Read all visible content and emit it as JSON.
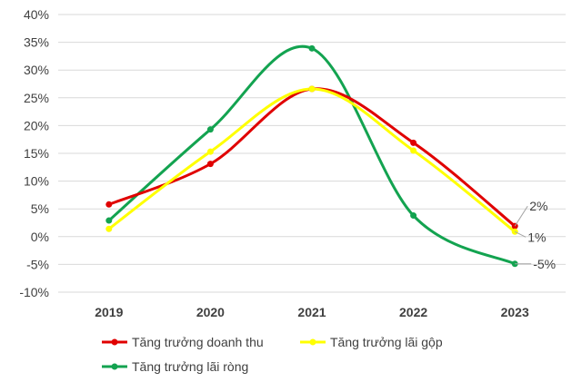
{
  "chart_data": {
    "type": "line",
    "smooth": true,
    "categories": [
      "2019",
      "2020",
      "2021",
      "2022",
      "2023"
    ],
    "y_ticks": [
      "40%",
      "35%",
      "30%",
      "25%",
      "20%",
      "15%",
      "10%",
      "5%",
      "0%",
      "-5%",
      "-10%"
    ],
    "ylim": [
      -10,
      40
    ],
    "y_unit": "%",
    "grid": true,
    "legend_position": "bottom",
    "series": [
      {
        "name": "Tăng trưởng doanh thu",
        "color": "#e00000",
        "values": [
          5.8,
          13.1,
          26.6,
          16.9,
          1.9
        ]
      },
      {
        "name": "Tăng trưởng lãi gộp",
        "color": "#ffff00",
        "values": [
          1.4,
          15.3,
          26.6,
          15.5,
          0.9
        ]
      },
      {
        "name": "Tăng trưởng lãi ròng",
        "color": "#13a350",
        "values": [
          2.9,
          19.3,
          33.9,
          3.8,
          -4.9
        ]
      }
    ],
    "data_labels": [
      {
        "text": "2%",
        "series": 0,
        "index": 4
      },
      {
        "text": "1%",
        "series": 1,
        "index": 4
      },
      {
        "text": "-5%",
        "series": 2,
        "index": 4
      }
    ]
  }
}
